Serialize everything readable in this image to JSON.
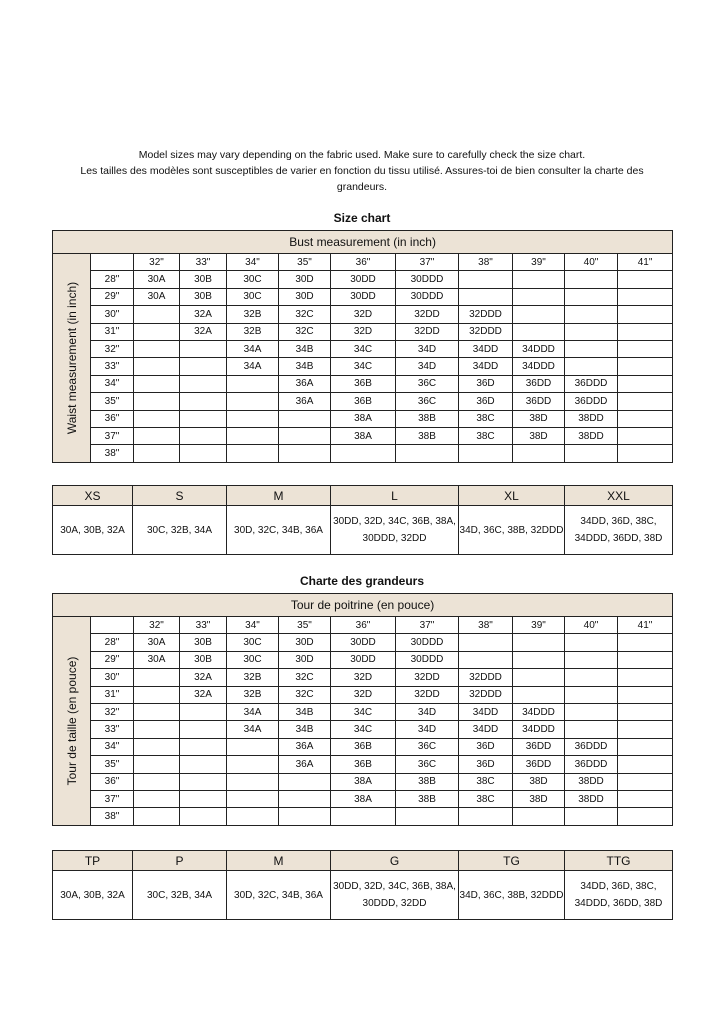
{
  "intro": {
    "line1": "Model sizes may vary depending on the fabric used. Make sure to carefully check the size chart.",
    "line2": "Les tailles des modèles sont susceptibles de varier en fonction du tissu utilisé. Assures-toi de bien consulter la charte des grandeurs."
  },
  "sections": [
    {
      "title": "Size chart",
      "bust_label": "Bust measurement (in inch)",
      "waist_label": "Waist measurement (in inch)",
      "sizes": [
        "XS",
        "S",
        "M",
        "L",
        "XL",
        "XXL"
      ]
    },
    {
      "title": "Charte des grandeurs",
      "bust_label": "Tour de poitrine (en pouce)",
      "waist_label": "Tour de taille (en pouce)",
      "sizes": [
        "TP",
        "P",
        "M",
        "G",
        "TG",
        "TTG"
      ]
    }
  ],
  "bust_columns": [
    "32\"",
    "33\"",
    "34\"",
    "35\"",
    "36\"",
    "37\"",
    "38\"",
    "39\"",
    "40\"",
    "41\""
  ],
  "rows": [
    {
      "waist": "28\"",
      "cells": [
        "30A",
        "30B",
        "30C",
        "30D",
        "30DD",
        "30DDD",
        "",
        "",
        "",
        ""
      ]
    },
    {
      "waist": "29\"",
      "cells": [
        "30A",
        "30B",
        "30C",
        "30D",
        "30DD",
        "30DDD",
        "",
        "",
        "",
        ""
      ]
    },
    {
      "waist": "30\"",
      "cells": [
        "",
        "32A",
        "32B",
        "32C",
        "32D",
        "32DD",
        "32DDD",
        "",
        "",
        ""
      ]
    },
    {
      "waist": "31\"",
      "cells": [
        "",
        "32A",
        "32B",
        "32C",
        "32D",
        "32DD",
        "32DDD",
        "",
        "",
        ""
      ]
    },
    {
      "waist": "32\"",
      "cells": [
        "",
        "",
        "34A",
        "34B",
        "34C",
        "34D",
        "34DD",
        "34DDD",
        "",
        ""
      ]
    },
    {
      "waist": "33\"",
      "cells": [
        "",
        "",
        "34A",
        "34B",
        "34C",
        "34D",
        "34DD",
        "34DDD",
        "",
        ""
      ]
    },
    {
      "waist": "34\"",
      "cells": [
        "",
        "",
        "",
        "36A",
        "36B",
        "36C",
        "36D",
        "36DD",
        "36DDD",
        ""
      ]
    },
    {
      "waist": "35\"",
      "cells": [
        "",
        "",
        "",
        "36A",
        "36B",
        "36C",
        "36D",
        "36DD",
        "36DDD",
        ""
      ]
    },
    {
      "waist": "36\"",
      "cells": [
        "",
        "",
        "",
        "",
        "38A",
        "38B",
        "38C",
        "38D",
        "38DD",
        ""
      ]
    },
    {
      "waist": "37\"",
      "cells": [
        "",
        "",
        "",
        "",
        "38A",
        "38B",
        "38C",
        "38D",
        "38DD",
        ""
      ]
    },
    {
      "waist": "38\"",
      "cells": [
        "",
        "",
        "",
        "",
        "",
        "",
        "",
        "",
        "",
        ""
      ]
    }
  ],
  "size_values": [
    "30A, 30B, 32A",
    "30C, 32B, 34A",
    "30D, 32C, 34B, 36A",
    "30DD, 32D, 34C, 36B, 38A, 30DDD, 32DD",
    "34D, 36C, 38B, 32DDD",
    "34DD, 36D, 38C, 34DDD, 36DD, 38D"
  ],
  "colors": {
    "header_bg": "#ece3d6"
  }
}
